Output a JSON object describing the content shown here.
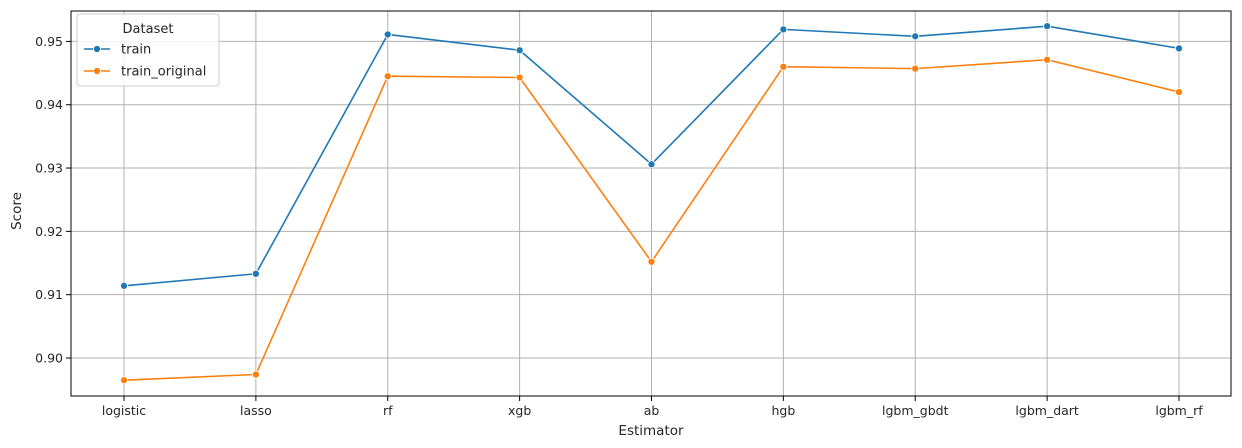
{
  "chart_data": {
    "type": "line",
    "xlabel": "Estimator",
    "ylabel": "Score",
    "categories": [
      "logistic",
      "lasso",
      "rf",
      "xgb",
      "ab",
      "hgb",
      "lgbm_gbdt",
      "lgbm_dart",
      "lgbm_rf"
    ],
    "yticks": [
      0.9,
      0.91,
      0.92,
      0.93,
      0.94,
      0.95
    ],
    "ytick_labels": [
      "0.90",
      "0.91",
      "0.92",
      "0.93",
      "0.94",
      "0.95"
    ],
    "ylim": [
      0.894,
      0.9548
    ],
    "grid": true,
    "legend": {
      "title": "Dataset",
      "placement": "top-left"
    },
    "series": [
      {
        "name": "train",
        "color": "#1f77b4",
        "values": [
          0.9114,
          0.9133,
          0.9511,
          0.9486,
          0.9306,
          0.9519,
          0.9508,
          0.9524,
          0.9489
        ]
      },
      {
        "name": "train_original",
        "color": "#ff7f0e",
        "values": [
          0.8965,
          0.8974,
          0.9445,
          0.9443,
          0.9152,
          0.946,
          0.9457,
          0.9471,
          0.942
        ]
      }
    ]
  }
}
